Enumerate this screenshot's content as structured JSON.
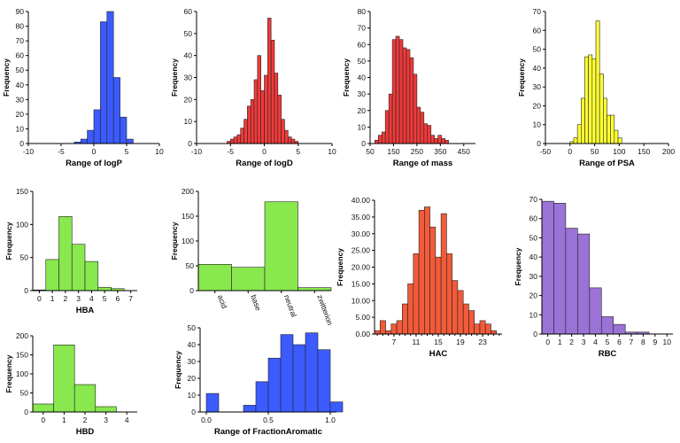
{
  "chart_data": [
    {
      "id": "logp",
      "type": "bar",
      "title": "",
      "xlabel": "Range of logP",
      "ylabel": "Frequency",
      "color": "#3b5bff",
      "xlim": [
        -10,
        10
      ],
      "ylim": [
        0,
        90
      ],
      "xticks": [
        -10,
        -5,
        0,
        5,
        10
      ],
      "yticks": [
        0,
        10,
        20,
        30,
        40,
        50,
        60,
        70,
        80,
        90
      ],
      "bin_width": 1,
      "bins": [
        -3,
        -2,
        -1,
        0,
        1,
        2,
        3,
        4,
        5
      ],
      "values": [
        1,
        3,
        9,
        23,
        83,
        90,
        45,
        18,
        3
      ]
    },
    {
      "id": "logd",
      "type": "bar",
      "title": "",
      "xlabel": "Range of logD",
      "ylabel": "Frequency",
      "color": "#f03a3a",
      "xlim": [
        -10,
        10
      ],
      "ylim": [
        0,
        60
      ],
      "xticks": [
        -10,
        -5,
        0,
        5,
        10
      ],
      "yticks": [
        0,
        10,
        20,
        30,
        40,
        50,
        60
      ],
      "bin_width": 0.5,
      "bins": [
        -5.5,
        -5,
        -4.5,
        -4,
        -3.5,
        -3,
        -2.5,
        -2,
        -1.5,
        -1,
        -0.5,
        0,
        0.5,
        1,
        1.5,
        2,
        2.5,
        3,
        3.5,
        4,
        4.5
      ],
      "values": [
        1,
        2,
        3,
        4,
        7,
        11,
        17,
        20,
        29,
        40,
        24,
        31,
        57,
        47,
        32,
        22,
        11,
        6,
        3,
        2,
        1
      ]
    },
    {
      "id": "mass",
      "type": "bar",
      "title": "",
      "xlabel": "Range of mass",
      "ylabel": "Frequency",
      "color": "#f03a3a",
      "xlim": [
        50,
        500
      ],
      "ylim": [
        0,
        80
      ],
      "xticks": [
        50,
        150,
        250,
        350,
        450
      ],
      "xticklabels": [
        "50",
        "150",
        "250",
        "350",
        "450"
      ],
      "yticks": [
        0,
        10,
        20,
        30,
        40,
        50,
        60,
        70,
        80
      ],
      "bin_width": 15,
      "bins": [
        70,
        85,
        100,
        115,
        130,
        145,
        160,
        175,
        190,
        205,
        220,
        235,
        250,
        265,
        280,
        295,
        310,
        325,
        340,
        355,
        370
      ],
      "values": [
        2,
        5,
        7,
        20,
        30,
        63,
        65,
        63,
        58,
        57,
        52,
        42,
        22,
        19,
        12,
        11,
        5,
        3,
        5,
        3,
        2
      ]
    },
    {
      "id": "psa",
      "type": "bar",
      "title": "",
      "xlabel": "Range of PSA",
      "ylabel": "Frequency",
      "color": "#ffff33",
      "xlim": [
        -50,
        200
      ],
      "ylim": [
        0,
        70
      ],
      "xticks": [
        -50,
        0,
        50,
        100,
        150,
        200
      ],
      "yticks": [
        0,
        10,
        20,
        30,
        40,
        50,
        60,
        70
      ],
      "bin_width": 7.5,
      "bins": [
        0,
        7.5,
        15,
        22.5,
        30,
        37.5,
        45,
        52.5,
        60,
        67.5,
        75,
        82.5,
        90,
        97.5
      ],
      "values": [
        1,
        3,
        10,
        24,
        46,
        47,
        45,
        65,
        37,
        24,
        15,
        15,
        7,
        3
      ]
    },
    {
      "id": "hba",
      "type": "bar",
      "title": "",
      "xlabel": "HBA",
      "ylabel": "Frequency",
      "color": "#88e84e",
      "xlim": [
        -0.5,
        7.5
      ],
      "ylim": [
        0,
        150
      ],
      "xticks": [
        0,
        1,
        2,
        3,
        4,
        5,
        6,
        7
      ],
      "yticks": [
        0,
        50,
        100,
        150
      ],
      "bin_width": 1,
      "bins": [
        0,
        1,
        2,
        3,
        4,
        5,
        6
      ],
      "values": [
        1,
        47,
        112,
        70,
        44,
        5,
        3
      ]
    },
    {
      "id": "charge",
      "type": "bar",
      "title": "",
      "xlabel": "",
      "ylabel": "Frequency",
      "color": "#88e84e",
      "ylim": [
        0,
        200
      ],
      "yticks": [
        0,
        50,
        100,
        150,
        200
      ],
      "categories": [
        "acid",
        "base",
        "neutral",
        "zwitterion"
      ],
      "values": [
        53,
        47,
        179,
        6
      ]
    },
    {
      "id": "hac",
      "type": "bar",
      "title": "",
      "xlabel": "HAC",
      "ylabel": "Frequency",
      "color": "#f25a3a",
      "xlim": [
        3.5,
        26.5
      ],
      "ylim": [
        0,
        40
      ],
      "xticks": [
        7,
        11,
        15,
        19,
        23
      ],
      "yticks": [
        0,
        5,
        10,
        15,
        20,
        25,
        30,
        35,
        40
      ],
      "yticklabels": [
        "0.00",
        "5.00",
        "10.00",
        "15.00",
        "20.00",
        "25.00",
        "30.00",
        "35.00",
        "40.00"
      ],
      "bin_width": 1,
      "bins": [
        4,
        5,
        6,
        7,
        8,
        9,
        10,
        11,
        12,
        13,
        14,
        15,
        16,
        17,
        18,
        19,
        20,
        21,
        22,
        23,
        24,
        25
      ],
      "values": [
        1,
        4,
        1,
        3,
        4,
        9,
        15,
        24,
        37,
        38,
        32,
        23,
        36,
        24,
        16,
        13,
        9,
        7,
        3,
        4,
        3,
        1
      ]
    },
    {
      "id": "rbc",
      "type": "bar",
      "title": "",
      "xlabel": "RBC",
      "ylabel": "Frequency",
      "color": "#9b72d6",
      "xlim": [
        -0.5,
        10.5
      ],
      "ylim": [
        0,
        70
      ],
      "xticks": [
        0,
        1,
        2,
        3,
        4,
        5,
        6,
        7,
        8,
        9,
        10
      ],
      "yticks": [
        0,
        10,
        20,
        30,
        40,
        50,
        60,
        70
      ],
      "bin_width": 1,
      "bins": [
        0,
        1,
        2,
        3,
        4,
        5,
        6,
        7,
        8
      ],
      "values": [
        69,
        68,
        55,
        52,
        24,
        9,
        5,
        1,
        1
      ]
    },
    {
      "id": "hbd",
      "type": "bar",
      "title": "",
      "xlabel": "HBD",
      "ylabel": "Frequency",
      "color": "#88e84e",
      "xlim": [
        -0.5,
        4.5
      ],
      "ylim": [
        0,
        200
      ],
      "xticks": [
        0,
        1,
        2,
        3,
        4
      ],
      "yticks": [
        0,
        50,
        100,
        150,
        200
      ],
      "bin_width": 1,
      "bins": [
        0,
        1,
        2,
        3
      ],
      "values": [
        21,
        176,
        72,
        14
      ]
    },
    {
      "id": "fracarom",
      "type": "bar",
      "title": "",
      "xlabel": "Range of FractionAromatic",
      "ylabel": "Frequency",
      "color": "#3b5bff",
      "xlim": [
        -0.05,
        1.05
      ],
      "ylim": [
        0,
        50
      ],
      "xticks": [
        0,
        0.5,
        1
      ],
      "xticklabels": [
        "0.0",
        "0.5",
        "1.0"
      ],
      "yticks": [
        0,
        10,
        20,
        30,
        40,
        50
      ],
      "bin_width": 0.1,
      "bins": [
        0,
        0.1,
        0.2,
        0.3,
        0.4,
        0.5,
        0.6,
        0.7,
        0.8,
        0.9,
        1.0
      ],
      "values": [
        11,
        0,
        0,
        4,
        18,
        32,
        46,
        40,
        47,
        37,
        6
      ]
    }
  ]
}
